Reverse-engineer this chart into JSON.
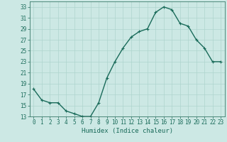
{
  "x": [
    0,
    1,
    2,
    3,
    4,
    5,
    6,
    7,
    8,
    9,
    10,
    11,
    12,
    13,
    14,
    15,
    16,
    17,
    18,
    19,
    20,
    21,
    22,
    23
  ],
  "y": [
    18.0,
    16.0,
    15.5,
    15.5,
    14.0,
    13.5,
    13.0,
    13.0,
    15.5,
    20.0,
    23.0,
    25.5,
    27.5,
    28.5,
    29.0,
    32.0,
    33.0,
    32.5,
    30.0,
    29.5,
    27.0,
    25.5,
    23.0,
    23.0
  ],
  "line_color": "#1a6b5a",
  "marker": "+",
  "marker_size": 3,
  "bg_color": "#cce8e4",
  "grid_color": "#aed4ce",
  "axis_color": "#3a7a6a",
  "xlabel": "Humidex (Indice chaleur)",
  "ylim": [
    13,
    34
  ],
  "xlim": [
    -0.5,
    23.5
  ],
  "yticks": [
    13,
    15,
    17,
    19,
    21,
    23,
    25,
    27,
    29,
    31,
    33
  ],
  "xticks": [
    0,
    1,
    2,
    3,
    4,
    5,
    6,
    7,
    8,
    9,
    10,
    11,
    12,
    13,
    14,
    15,
    16,
    17,
    18,
    19,
    20,
    21,
    22,
    23
  ],
  "label_fontsize": 6.5,
  "tick_fontsize": 5.5,
  "line_width": 1.0
}
